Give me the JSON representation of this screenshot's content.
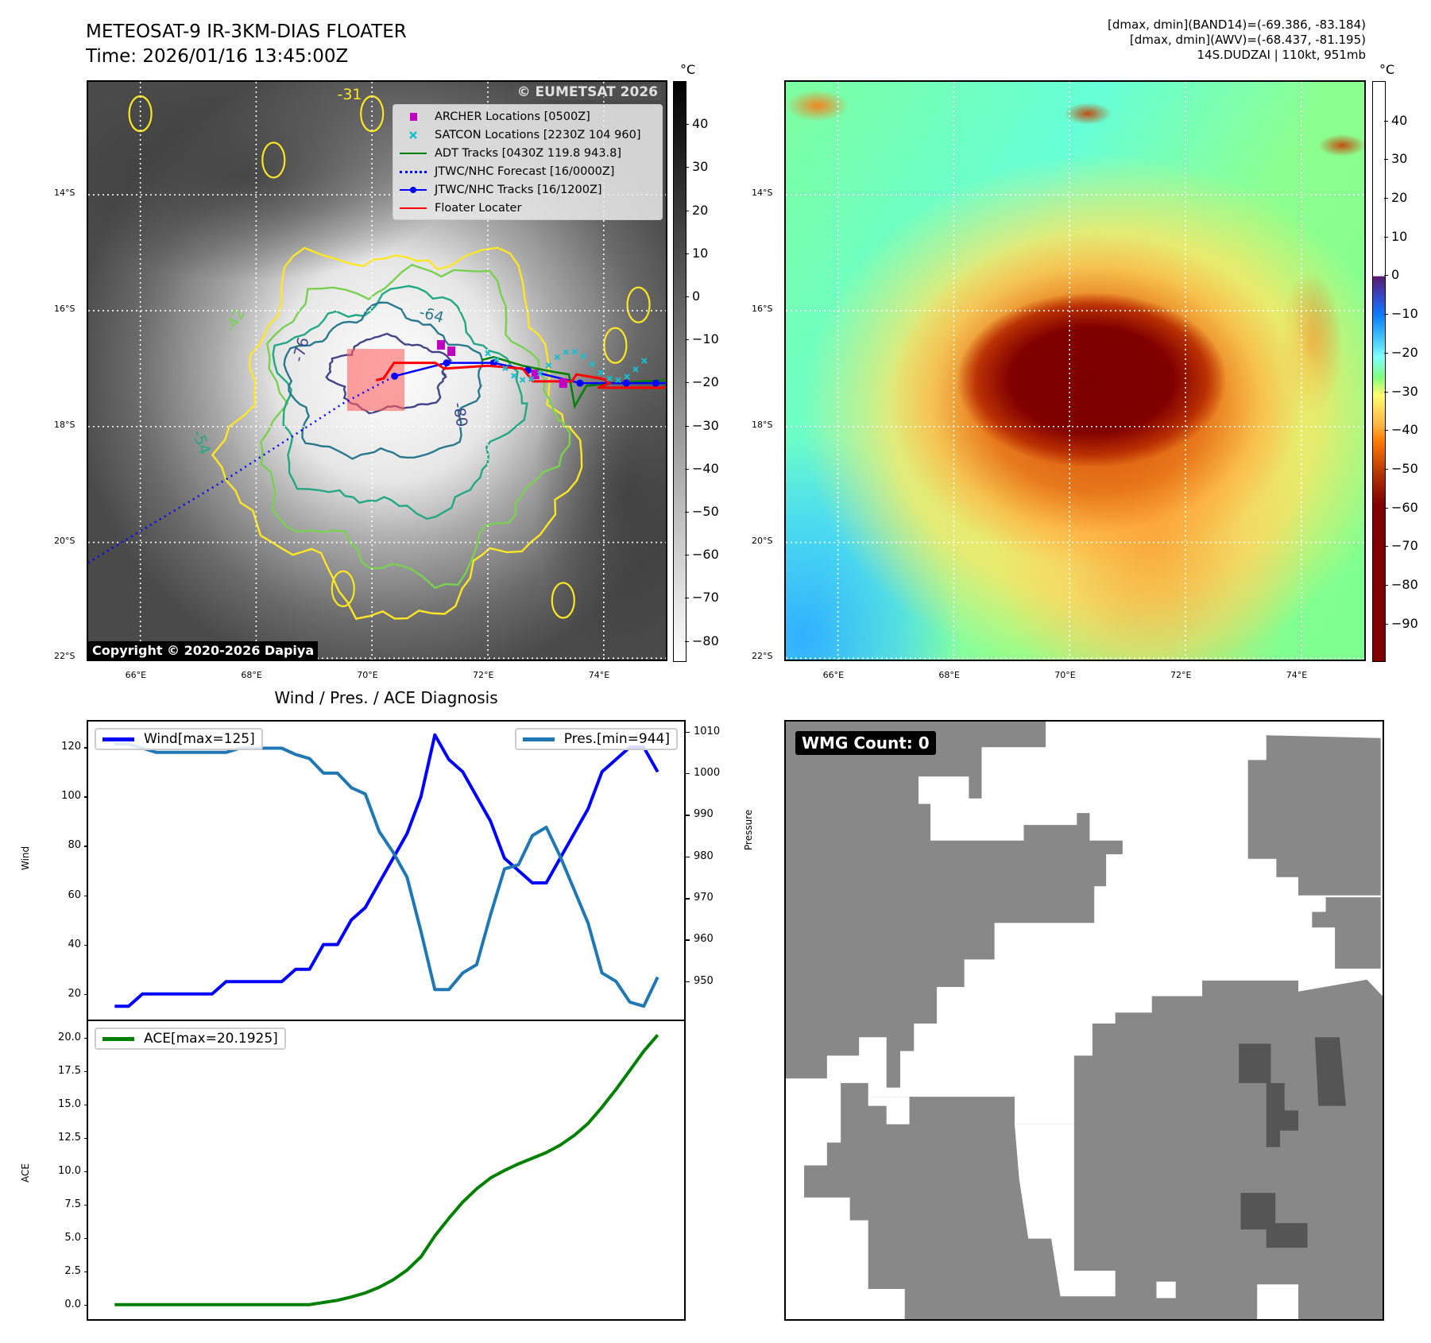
{
  "header": {
    "title_line1": "METEOSAT-9 IR-3KM-DIAS FLOATER",
    "title_line2": "Time: 2026/01/16 13:45:00Z",
    "info_line1": "[dmax, dmin](BAND14)=(-69.386, -83.184)",
    "info_line2": "[dmax, dmin](AWV)=(-68.437, -81.195)",
    "info_line3": "14S.DUDZAI | 110kt, 951mb"
  },
  "map": {
    "lon_ticks": [
      "66°E",
      "68°E",
      "70°E",
      "72°E",
      "74°E"
    ],
    "lat_ticks": [
      "14°S",
      "16°S",
      "18°S",
      "20°S",
      "22°S"
    ],
    "legend": [
      {
        "label": "ARCHER Locations [0500Z]",
        "color": "#c000c0",
        "style": "square"
      },
      {
        "label": "SATCON Locations [2230Z 104 960]",
        "color": "#17becf",
        "style": "x"
      },
      {
        "label": "ADT Tracks [0430Z 119.8 943.8]",
        "color": "#008000",
        "style": "line"
      },
      {
        "label": "JTWC/NHC Forecast [16/0000Z]",
        "color": "#0000ff",
        "style": "dotted"
      },
      {
        "label": "JTWC/NHC Tracks [16/1200Z]",
        "color": "#0000ff",
        "style": "line-dot"
      },
      {
        "label": "Floater Locater",
        "color": "#ff0000",
        "style": "line"
      }
    ],
    "watermark": "© EUMETSAT 2026",
    "copyright": "Copyright © 2020-2026 Dapiya",
    "contour_labels": [
      "-76",
      "-64",
      "-54",
      "-42",
      "-31",
      "-80"
    ],
    "contours": [
      {
        "level": -31,
        "color": "#fde725"
      },
      {
        "level": -42,
        "color": "#7ad151"
      },
      {
        "level": -54,
        "color": "#22a884"
      },
      {
        "level": -64,
        "color": "#2a788e"
      },
      {
        "level": -76,
        "color": "#414487"
      }
    ]
  },
  "colorbar_ir": {
    "unit": "°C",
    "ticks": [
      "40",
      "30",
      "20",
      "10",
      "0",
      "−10",
      "−20",
      "−30",
      "−40",
      "−50",
      "−60",
      "−70",
      "−80"
    ]
  },
  "colorbar_color": {
    "unit": "°C",
    "ticks": [
      "40",
      "30",
      "20",
      "10",
      "0",
      "−10",
      "−20",
      "−30",
      "−40",
      "−50",
      "−60",
      "−70",
      "−80",
      "−90"
    ]
  },
  "wmg": {
    "label": "WMG Count: 0"
  },
  "chart_data": [
    {
      "type": "line",
      "title": "Wind / Pres. / ACE Diagnosis",
      "ylabel": "Wind",
      "y2label": "Pressure",
      "ylim": [
        9.6,
        130.4
      ],
      "y2lim": [
        940.8,
        1012.4
      ],
      "yticks": [
        20,
        40,
        60,
        80,
        100,
        120
      ],
      "y2ticks": [
        950,
        960,
        970,
        980,
        990,
        1000,
        1010
      ],
      "xlim": [
        -1.9,
        40.9
      ],
      "series": [
        {
          "name": "Wind[max=125]",
          "color": "#0000ff",
          "axis": "left",
          "values": [
            15,
            15,
            20,
            20,
            20,
            20,
            20,
            20,
            25,
            25,
            25,
            25,
            25,
            30,
            30,
            40,
            40,
            50,
            55,
            65,
            75,
            85,
            100,
            125,
            115,
            110,
            100,
            90,
            75,
            70,
            65,
            65,
            75,
            85,
            95,
            110,
            115,
            120,
            120,
            110
          ]
        },
        {
          "name": "Pres.[min=944]",
          "color": "#1f77b4",
          "axis": "right",
          "values": [
            1007,
            1007,
            1006,
            1005,
            1005,
            1005,
            1005,
            1005,
            1005,
            1006,
            1006,
            1006,
            1006,
            1004.5,
            1003.5,
            1000,
            1000,
            996.5,
            995,
            986,
            981,
            975,
            962,
            948,
            948,
            952,
            954,
            966,
            977,
            978,
            985,
            987,
            980,
            972,
            964,
            952,
            950,
            945,
            944,
            951
          ]
        }
      ],
      "legend": [
        "top-left",
        "top-right"
      ]
    },
    {
      "type": "line",
      "ylabel": "ACE",
      "ylim": [
        -1.09,
        21.23
      ],
      "yticks": [
        0.0,
        2.5,
        5.0,
        7.5,
        10.0,
        12.5,
        15.0,
        17.5,
        20.0
      ],
      "xlim": [
        -1.9,
        40.9
      ],
      "series": [
        {
          "name": "ACE[max=20.1925]",
          "color": "#008000",
          "values": [
            0,
            0,
            0,
            0,
            0,
            0,
            0,
            0,
            0,
            0,
            0,
            0,
            0,
            0,
            0,
            0.16,
            0.32,
            0.57,
            0.8725,
            1.295,
            1.8575,
            2.58,
            3.58,
            5.1425,
            6.465,
            7.675,
            8.675,
            9.485,
            10.0475,
            10.5375,
            10.96,
            11.3825,
            11.945,
            12.6675,
            13.57,
            14.78,
            16.1025,
            17.5425,
            18.98,
            20.1925
          ]
        }
      ],
      "legend": "top-left"
    }
  ]
}
